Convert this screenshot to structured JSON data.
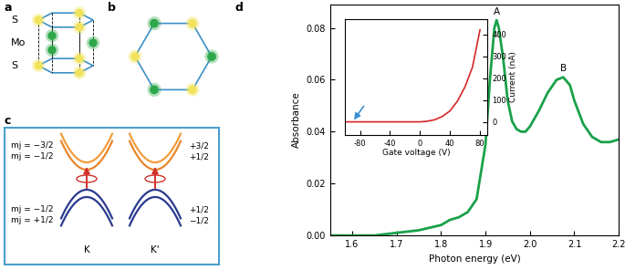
{
  "panel_labels": [
    "a",
    "b",
    "c",
    "d"
  ],
  "structure": {
    "layer_labels": [
      "S",
      "Mo",
      "S"
    ]
  },
  "band_diagram": {
    "valleys": [
      "K",
      "K'"
    ],
    "left_conduction": [
      "mj = −3/2",
      "mj = −1/2"
    ],
    "left_valence": [
      "mj = −1/2",
      "mj = +1/2"
    ],
    "right_conduction": [
      "+3/2",
      "+1/2"
    ],
    "right_valence": [
      "+1/2",
      "−1/2"
    ]
  },
  "chart_data": [
    {
      "type": "line",
      "xlabel": "Photon energy (eV)",
      "ylabel": "Absorbance",
      "color": "#1aa14a",
      "x": [
        1.55,
        1.6,
        1.65,
        1.7,
        1.75,
        1.8,
        1.82,
        1.84,
        1.86,
        1.88,
        1.9,
        1.91,
        1.92,
        1.925,
        1.93,
        1.94,
        1.95,
        1.96,
        1.97,
        1.98,
        1.99,
        2.0,
        2.02,
        2.04,
        2.06,
        2.075,
        2.09,
        2.1,
        2.12,
        2.14,
        2.16,
        2.18,
        2.2
      ],
      "values": [
        0.0,
        0.0,
        0.0,
        0.001,
        0.002,
        0.004,
        0.006,
        0.007,
        0.009,
        0.014,
        0.035,
        0.06,
        0.08,
        0.083,
        0.08,
        0.068,
        0.052,
        0.044,
        0.041,
        0.04,
        0.04,
        0.042,
        0.048,
        0.055,
        0.06,
        0.061,
        0.058,
        0.052,
        0.043,
        0.038,
        0.036,
        0.036,
        0.037
      ],
      "xlim": [
        1.55,
        2.2
      ],
      "xticks": [
        1.6,
        1.7,
        1.8,
        1.9,
        2.0,
        2.1,
        2.2
      ],
      "ylim": [
        0,
        0.089
      ],
      "yticks": [
        {
          "value": 0,
          "label": "0.00"
        },
        {
          "value": 0.02,
          "label": "0.02"
        },
        {
          "value": 0.04,
          "label": "0.04"
        },
        {
          "value": 0.06,
          "label": "0.06"
        },
        {
          "value": 0.08,
          "label": "0.08"
        }
      ],
      "annotations": [
        {
          "text": "A",
          "x": 1.925,
          "y": 0.083
        },
        {
          "text": "B",
          "x": 2.075,
          "y": 0.061
        }
      ]
    },
    {
      "type": "line",
      "xlabel": "Gate voltage (V)",
      "ylabel": "Current (nA)",
      "color": "#d62728",
      "x": [
        -100,
        -90,
        -60,
        -30,
        0,
        10,
        20,
        30,
        40,
        50,
        60,
        70,
        80
      ],
      "values": [
        0,
        0,
        0,
        0,
        0,
        3,
        10,
        25,
        50,
        95,
        160,
        250,
        420
      ],
      "xlim": [
        -100,
        90
      ],
      "xticks": [
        -80,
        -40,
        0,
        40,
        80
      ],
      "ylim": [
        -60,
        470
      ],
      "yticks": [
        0,
        100,
        200,
        300,
        400
      ]
    }
  ]
}
